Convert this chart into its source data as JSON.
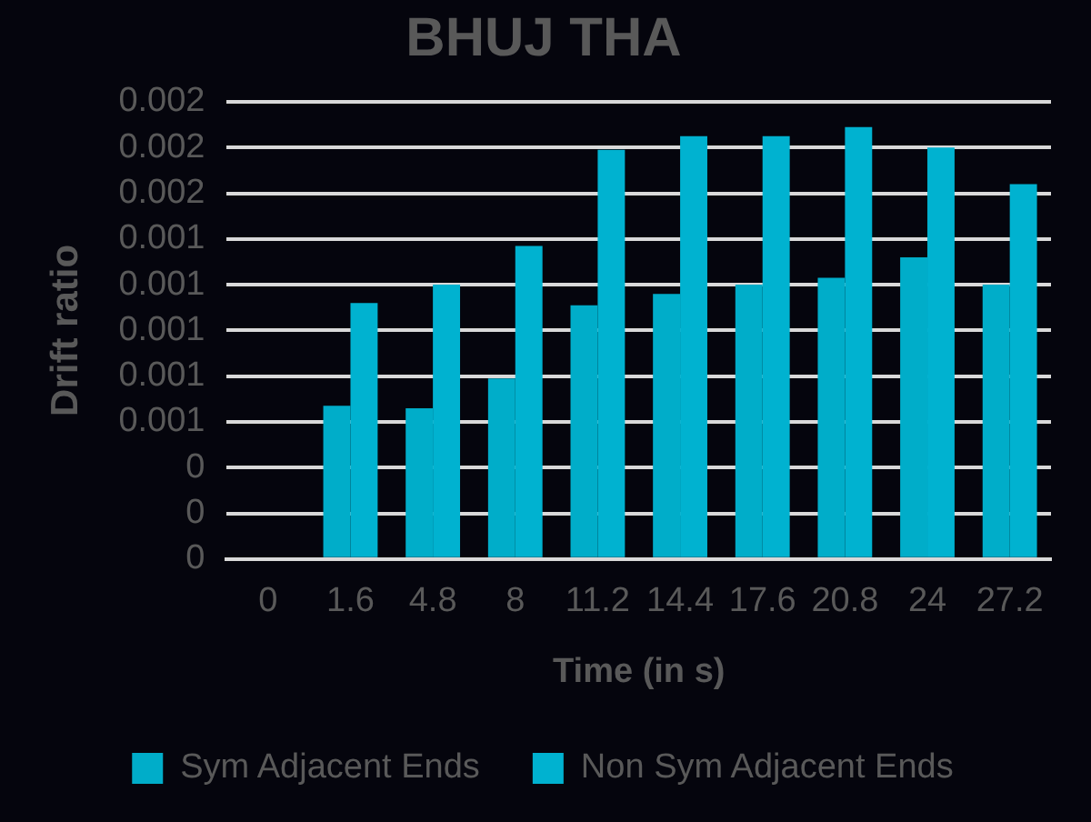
{
  "chart_data": {
    "type": "bar",
    "title": "BHUJ THA",
    "xlabel": "Time (in s)",
    "ylabel": "Drift ratio",
    "categories": [
      "0",
      "1.6",
      "4.8",
      "8",
      "11.2",
      "14.4",
      "17.6",
      "20.8",
      "24",
      "27.2"
    ],
    "series": [
      {
        "name": "Sym Adjacent Ends",
        "color": "#00adc9",
        "values": [
          0,
          0.00067,
          0.00066,
          0.00079,
          0.00111,
          0.00116,
          0.0012,
          0.00123,
          0.00132,
          0.0012
        ]
      },
      {
        "name": "Non Sym Adjacent Ends",
        "color": "#00b2d0",
        "values": [
          0,
          0.00112,
          0.0012,
          0.00137,
          0.00179,
          0.00185,
          0.00185,
          0.00189,
          0.0018,
          0.00164
        ]
      }
    ],
    "ylim": [
      0,
      0.002
    ],
    "yticks": [
      {
        "value": 0,
        "label": "0"
      },
      {
        "value": 0.0002,
        "label": "0"
      },
      {
        "value": 0.0004,
        "label": "0"
      },
      {
        "value": 0.0006,
        "label": "0.001"
      },
      {
        "value": 0.0008,
        "label": "0.001"
      },
      {
        "value": 0.001,
        "label": "0.001"
      },
      {
        "value": 0.0012,
        "label": "0.001"
      },
      {
        "value": 0.0014,
        "label": "0.001"
      },
      {
        "value": 0.0016,
        "label": "0.002"
      },
      {
        "value": 0.0018,
        "label": "0.002"
      },
      {
        "value": 0.002,
        "label": "0.002"
      }
    ],
    "grid": "y",
    "legend": "bottom"
  }
}
